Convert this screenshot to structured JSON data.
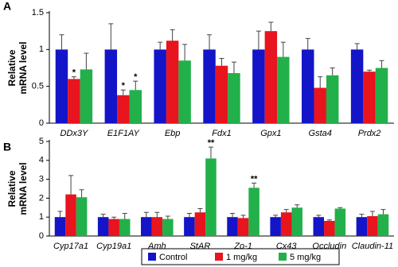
{
  "chart_data": [
    {
      "type": "bar",
      "panel": "A",
      "ylabel": [
        "Relative",
        "mRNA level"
      ],
      "categories": [
        "DDx3Y",
        "E1F1AY",
        "Ebp",
        "Fdx1",
        "Gpx1",
        "Gsta4",
        "Prdx2"
      ],
      "ylim": [
        0,
        1.5
      ],
      "yticks": [
        0,
        0.5,
        1,
        1.5
      ],
      "series": [
        {
          "name": "Control",
          "color": "#1414c8",
          "values": [
            1,
            1,
            1,
            1,
            1,
            1,
            1
          ],
          "errors": [
            0.2,
            0.35,
            0.1,
            0.2,
            0.25,
            0.15,
            0.08
          ]
        },
        {
          "name": "1 mg/kg",
          "color": "#e8141e",
          "values": [
            0.6,
            0.38,
            1.12,
            0.78,
            1.25,
            0.48,
            0.7
          ],
          "errors": [
            0.03,
            0.07,
            0.15,
            0.1,
            0.12,
            0.15,
            0.02
          ]
        },
        {
          "name": "5 mg/kg",
          "color": "#22b04a",
          "values": [
            0.73,
            0.45,
            0.85,
            0.68,
            0.9,
            0.65,
            0.75
          ],
          "errors": [
            0.22,
            0.12,
            0.22,
            0.15,
            0.2,
            0.1,
            0.1
          ]
        }
      ],
      "annotations": [
        {
          "text": "*",
          "category": "DDx3Y",
          "series": "1 mg/kg"
        },
        {
          "text": "*",
          "category": "E1F1AY",
          "series": "1 mg/kg"
        },
        {
          "text": "*",
          "category": "E1F1AY",
          "series": "5 mg/kg"
        }
      ]
    },
    {
      "type": "bar",
      "panel": "B",
      "ylabel": [
        "Relative",
        "mRNA level"
      ],
      "categories": [
        "Cyp17a1",
        "Cyp19a1",
        "Amh",
        "StAR",
        "Zo-1",
        "Cx43",
        "Occludin",
        "Claudin-11"
      ],
      "ylim": [
        0,
        5
      ],
      "yticks": [
        0,
        1,
        2,
        3,
        4,
        5
      ],
      "series": [
        {
          "color": "#1414c8",
          "values": [
            1,
            1,
            1,
            1,
            1,
            1,
            1,
            1
          ],
          "errors": [
            0.3,
            0.15,
            0.25,
            0.2,
            0.2,
            0.1,
            0.1,
            0.15
          ]
        },
        {
          "color": "#e8141e",
          "values": [
            2.2,
            0.9,
            1.0,
            1.25,
            0.95,
            1.25,
            0.8,
            1.05
          ],
          "errors": [
            1.0,
            0.1,
            0.25,
            0.2,
            0.15,
            0.15,
            0.05,
            0.25
          ]
        },
        {
          "color": "#22b04a",
          "values": [
            2.05,
            0.9,
            0.9,
            4.1,
            2.55,
            1.5,
            1.45,
            1.15
          ],
          "errors": [
            0.4,
            0.3,
            0.15,
            0.6,
            0.25,
            0.15,
            0.05,
            0.25
          ]
        }
      ],
      "annotations": [
        {
          "text": "**",
          "category": "StAR",
          "series": 2
        },
        {
          "text": "**",
          "category": "Zo-1",
          "series": 2
        }
      ]
    }
  ]
}
